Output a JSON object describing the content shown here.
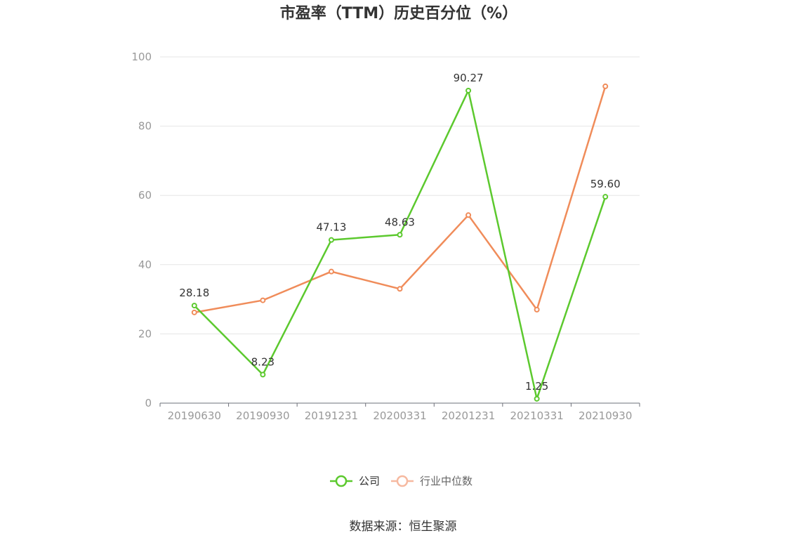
{
  "chart_data": {
    "type": "line",
    "title": "市盈率（TTM）历史百分位（%）",
    "categories": [
      "20190630",
      "20190930",
      "20191231",
      "20200331",
      "20201231",
      "20210331",
      "20210930"
    ],
    "series": [
      {
        "name": "公司",
        "color": "#5cc92e",
        "values": [
          28.18,
          8.23,
          47.13,
          48.63,
          90.27,
          1.25,
          59.6
        ],
        "labels": [
          "28.18",
          "8.23",
          "47.13",
          "48.63",
          "90.27",
          "1.25",
          "59.60"
        ]
      },
      {
        "name": "行业中位数",
        "color": "#f08c5a",
        "values": [
          26.2,
          29.7,
          38.0,
          33.0,
          54.3,
          27.0,
          91.5
        ]
      }
    ],
    "ylim": [
      0,
      100
    ],
    "yticks": [
      "0",
      "20",
      "40",
      "60",
      "80",
      "100"
    ],
    "grid": true,
    "legend_position": "bottom-center"
  },
  "source": "数据来源：恒生聚源"
}
